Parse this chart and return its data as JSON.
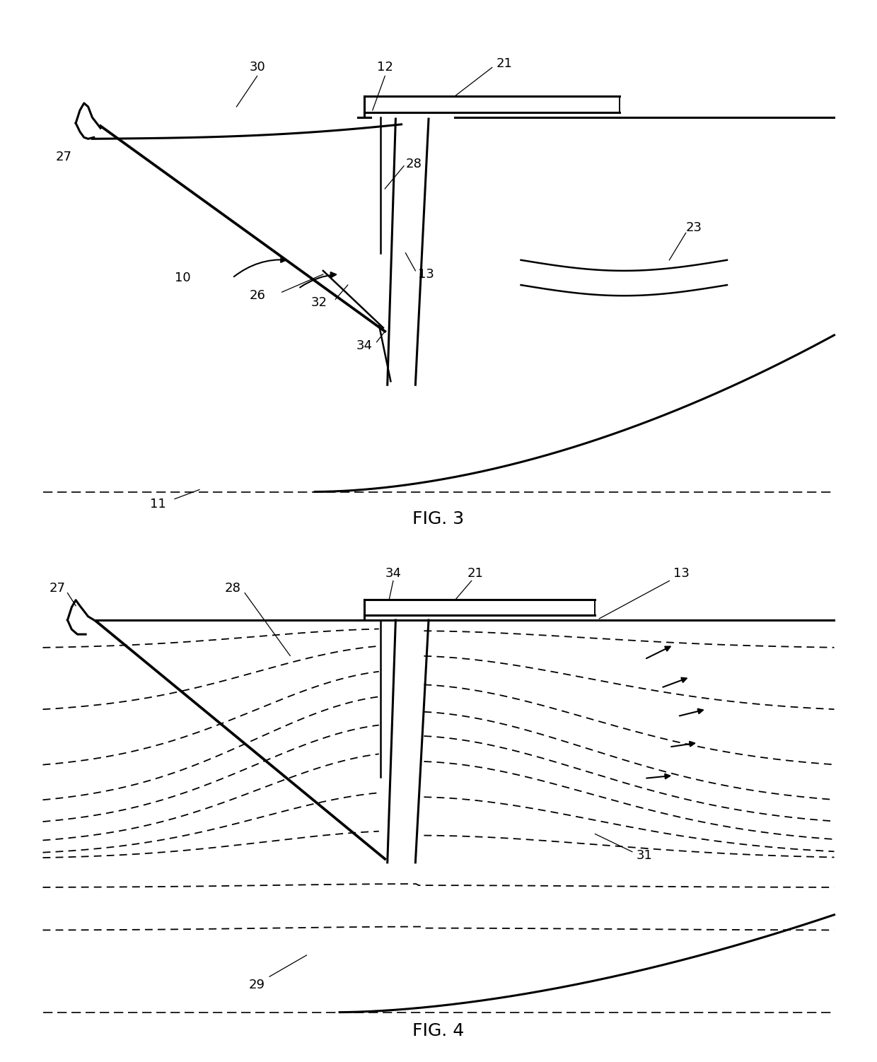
{
  "bg_color": "#ffffff",
  "line_color": "#000000",
  "fig3_caption": "FIG. 3",
  "fig4_caption": "FIG. 4",
  "label_fontsize": 13,
  "caption_fontsize": 18
}
